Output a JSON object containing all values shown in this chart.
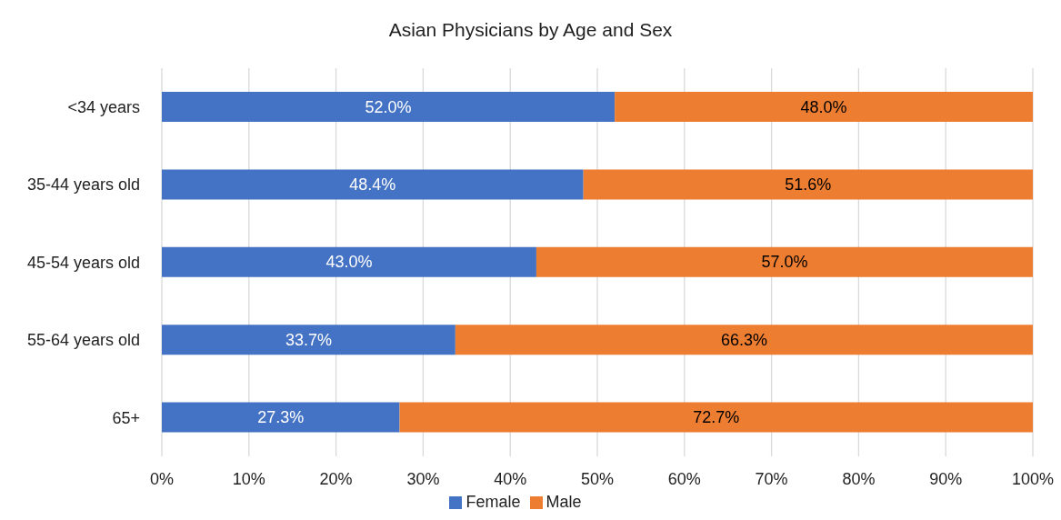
{
  "chart_data": {
    "type": "bar",
    "orientation": "horizontal",
    "stacked": true,
    "title": "Asian Physicians by Age and Sex",
    "categories": [
      "<34 years",
      "35-44 years old",
      "45-54 years old",
      "55-64 years old",
      "65+"
    ],
    "series": [
      {
        "name": "Female",
        "color": "#4472c4",
        "values": [
          52.0,
          48.4,
          43.0,
          33.7,
          27.3
        ],
        "value_labels": [
          "52.0%",
          "48.4%",
          "43.0%",
          "33.7%",
          "27.3%"
        ]
      },
      {
        "name": "Male",
        "color": "#ed7d31",
        "values": [
          48.0,
          51.6,
          57.0,
          66.3,
          72.7
        ],
        "value_labels": [
          "48.0%",
          "51.6%",
          "57.0%",
          "66.3%",
          "72.7%"
        ]
      }
    ],
    "xlim": [
      0,
      100
    ],
    "xticks": [
      {
        "value": 0,
        "label": "0%"
      },
      {
        "value": 10,
        "label": "10%"
      },
      {
        "value": 20,
        "label": "20%"
      },
      {
        "value": 30,
        "label": "30%"
      },
      {
        "value": 40,
        "label": "40%"
      },
      {
        "value": 50,
        "label": "50%"
      },
      {
        "value": 60,
        "label": "60%"
      },
      {
        "value": 70,
        "label": "70%"
      },
      {
        "value": 80,
        "label": "80%"
      },
      {
        "value": 90,
        "label": "90%"
      },
      {
        "value": 100,
        "label": "100%"
      }
    ],
    "grid": "x",
    "legend": "bottom"
  }
}
